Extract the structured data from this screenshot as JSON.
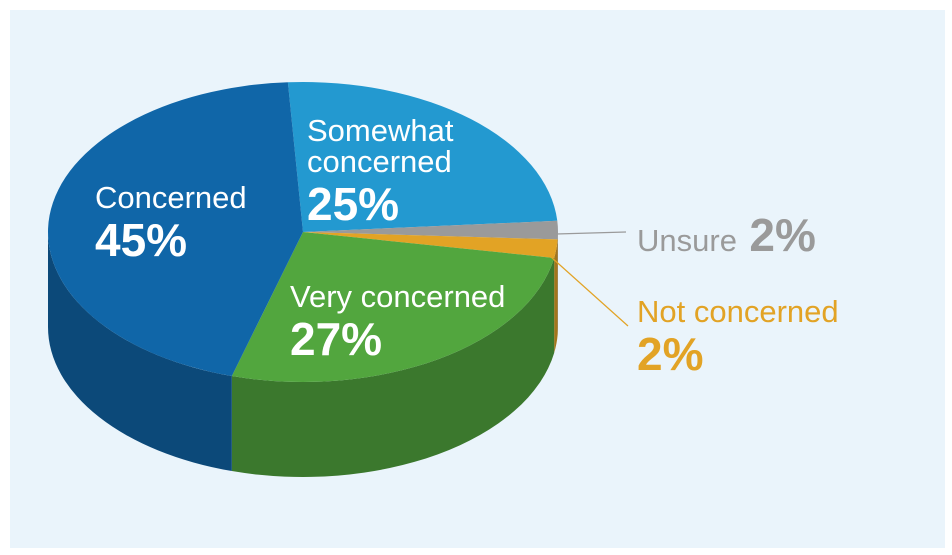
{
  "chart_data": {
    "type": "pie",
    "categories": [
      "Somewhat concerned",
      "Unsure",
      "Not concerned",
      "Very concerned",
      "Concerned"
    ],
    "values": [
      25,
      2,
      2,
      27,
      45
    ],
    "value_labels": [
      "25%",
      "2%",
      "2%",
      "27%",
      "45%"
    ],
    "colors": [
      "#2399d0",
      "#9a9a9a",
      "#e2a325",
      "#52a63e",
      "#1066a8"
    ]
  }
}
